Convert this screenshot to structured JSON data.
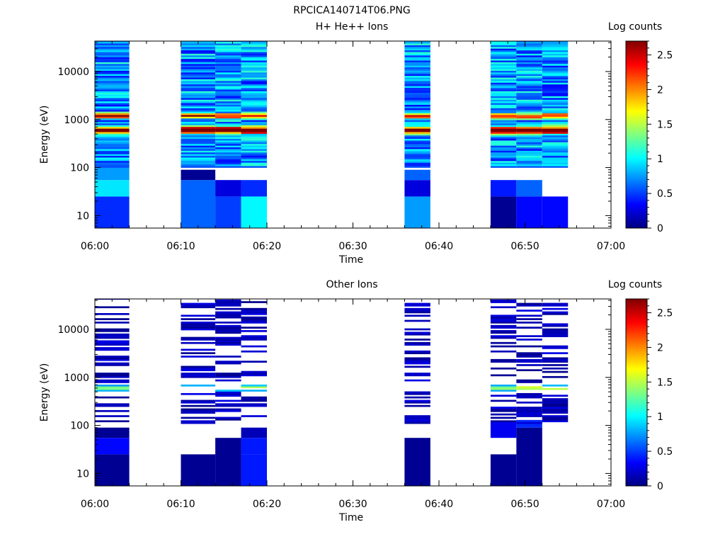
{
  "figure_title": "RPCICA140714T06.PNG",
  "chart_data": [
    {
      "type": "heatmap",
      "title": "H+ He++ Ions",
      "xlabel": "Time",
      "ylabel": "Energy (eV)",
      "y_scale": "log",
      "ylim": [
        5.5,
        43000
      ],
      "xlim": [
        "06:00",
        "07:00"
      ],
      "x_ticks": [
        "06:00",
        "06:10",
        "06:20",
        "06:30",
        "06:40",
        "06:50",
        "07:00"
      ],
      "y_ticks": [
        "10",
        "100",
        "1000",
        "10000"
      ],
      "colorbar": {
        "label": "Log counts",
        "range": [
          0,
          2.7
        ],
        "ticks": [
          "0",
          "0.5",
          "1",
          "1.5",
          "2",
          "2.5"
        ]
      },
      "time_bins": [
        {
          "start": "06:00",
          "end": "06:04",
          "seed": 11,
          "low": [
            [
              5.5,
              25,
              0.45
            ],
            [
              25,
              55,
              0.95
            ],
            [
              55,
              100,
              0.75
            ]
          ]
        },
        {
          "start": "06:10",
          "end": "06:14",
          "seed": 23,
          "low": [
            [
              5.5,
              55,
              0.6
            ],
            [
              55,
              90,
              0.05
            ]
          ]
        },
        {
          "start": "06:14",
          "end": "06:17",
          "seed": 37,
          "low": [
            [
              5.5,
              25,
              0.5
            ],
            [
              25,
              55,
              0.25
            ]
          ]
        },
        {
          "start": "06:17",
          "end": "06:20",
          "seed": 41,
          "low": [
            [
              5.5,
              25,
              1.0
            ],
            [
              25,
              55,
              0.45
            ]
          ]
        },
        {
          "start": "06:36",
          "end": "06:39",
          "seed": 53,
          "low": [
            [
              5.5,
              25,
              0.75
            ],
            [
              25,
              55,
              0.25
            ],
            [
              55,
              90,
              0.6
            ]
          ]
        },
        {
          "start": "06:46",
          "end": "06:49",
          "seed": 61,
          "low": [
            [
              5.5,
              25,
              0.05
            ],
            [
              25,
              55,
              0.4
            ]
          ]
        },
        {
          "start": "06:49",
          "end": "06:52",
          "seed": 71,
          "low": [
            [
              5.5,
              25,
              0.35
            ],
            [
              25,
              55,
              0.6
            ]
          ]
        },
        {
          "start": "06:52",
          "end": "06:55",
          "seed": 83,
          "low": [
            [
              5.5,
              25,
              0.35
            ]
          ]
        }
      ]
    },
    {
      "type": "heatmap",
      "title": "Other Ions",
      "xlabel": "Time",
      "ylabel": "Energy (eV)",
      "y_scale": "log",
      "ylim": [
        5.5,
        43000
      ],
      "xlim": [
        "06:00",
        "07:00"
      ],
      "x_ticks": [
        "06:00",
        "06:10",
        "06:20",
        "06:30",
        "06:40",
        "06:50",
        "07:00"
      ],
      "y_ticks": [
        "10",
        "100",
        "1000",
        "10000"
      ],
      "colorbar": {
        "label": "Log counts",
        "range": [
          0,
          2.7
        ],
        "ticks": [
          "0",
          "0.5",
          "1",
          "1.5",
          "2",
          "2.5"
        ]
      },
      "time_bins": [
        {
          "start": "06:00",
          "end": "06:04",
          "seed": 13,
          "low": [
            [
              5.5,
              25,
              0.05
            ],
            [
              25,
              55,
              0.35
            ],
            [
              55,
              90,
              0.05
            ]
          ]
        },
        {
          "start": "06:10",
          "end": "06:14",
          "seed": 29,
          "low": [
            [
              5.5,
              25,
              0.05
            ]
          ]
        },
        {
          "start": "06:14",
          "end": "06:17",
          "seed": 31,
          "low": [
            [
              5.5,
              55,
              0.05
            ]
          ]
        },
        {
          "start": "06:17",
          "end": "06:20",
          "seed": 43,
          "low": [
            [
              5.5,
              25,
              0.4
            ],
            [
              25,
              55,
              0.4
            ],
            [
              55,
              90,
              0.15
            ]
          ]
        },
        {
          "start": "06:36",
          "end": "06:39",
          "seed": 59,
          "low": [
            [
              5.5,
              55,
              0.05
            ]
          ]
        },
        {
          "start": "06:46",
          "end": "06:49",
          "seed": 67,
          "low": [
            [
              5.5,
              25,
              0.05
            ],
            [
              55,
              120,
              0.3
            ]
          ]
        },
        {
          "start": "06:49",
          "end": "06:52",
          "seed": 73,
          "low": [
            [
              5.5,
              90,
              0.05
            ],
            [
              90,
              130,
              0.45
            ]
          ]
        },
        {
          "start": "06:52",
          "end": "06:55",
          "seed": 89,
          "low": []
        }
      ]
    }
  ]
}
